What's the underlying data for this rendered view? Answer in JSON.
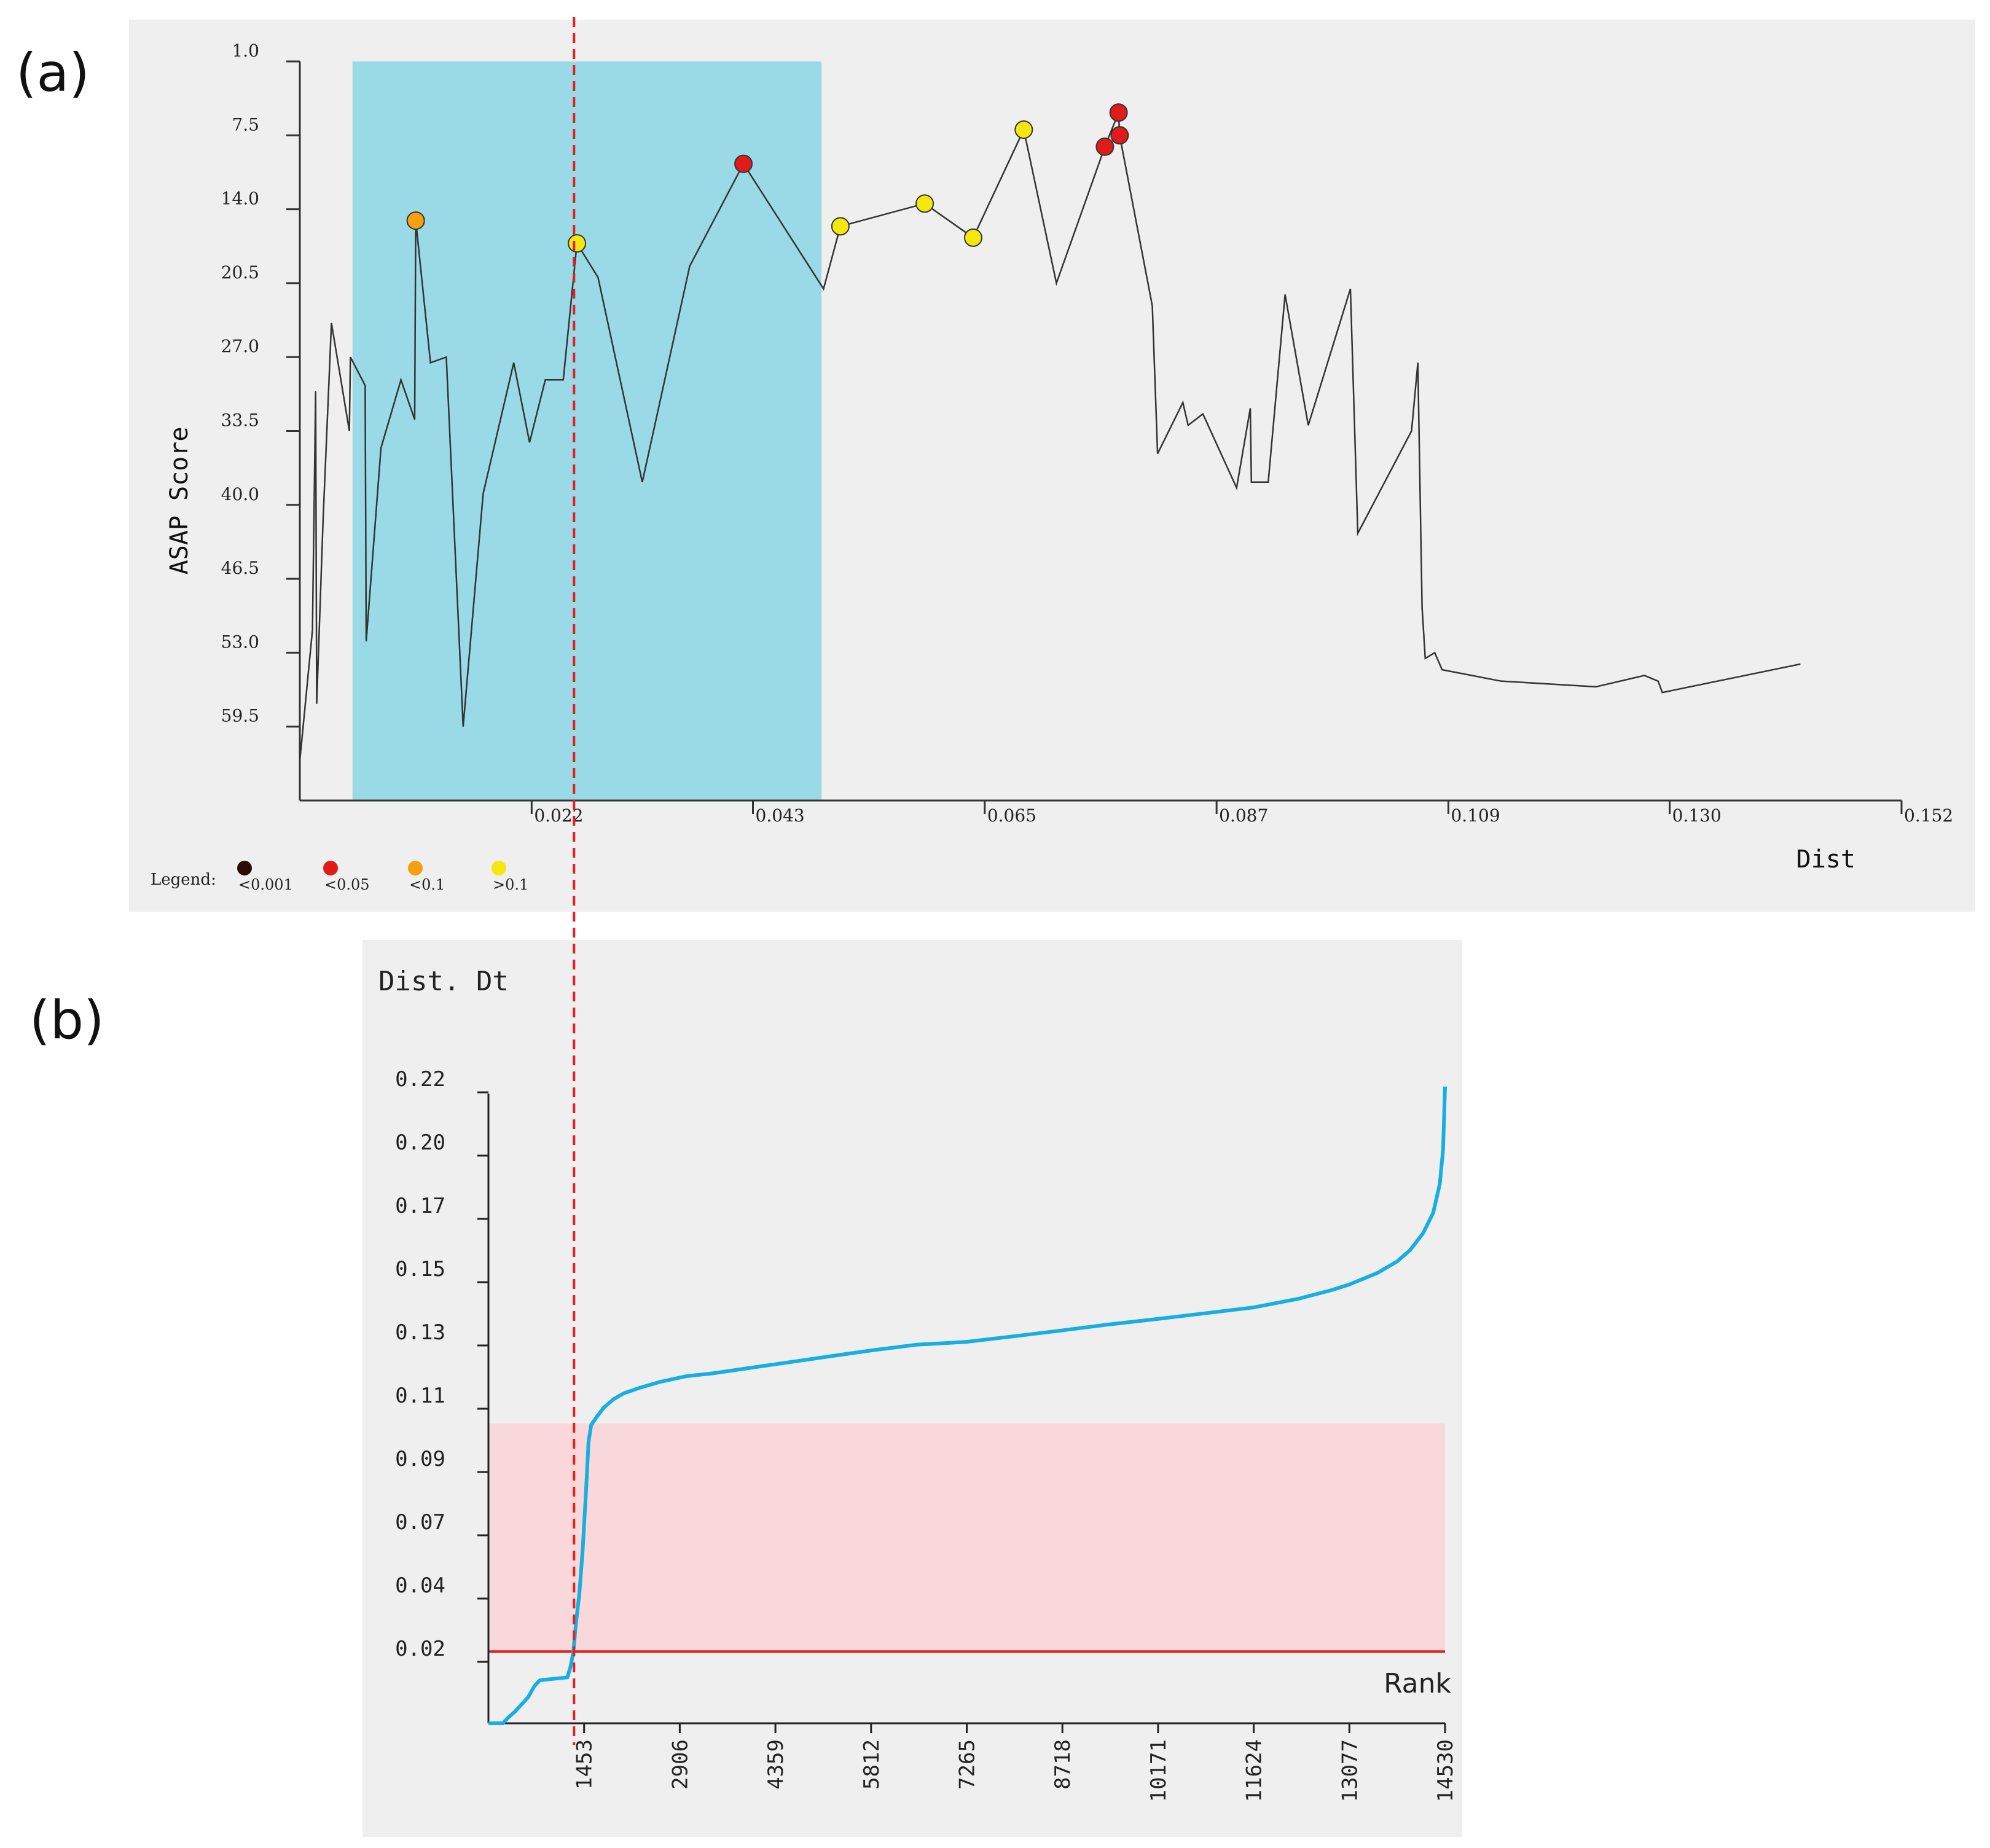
{
  "panel_labels": {
    "a": "(a)",
    "b": "(b)"
  },
  "chart_data": [
    {
      "id": "asap",
      "type": "line",
      "xlabel": "Dist",
      "ylabel": "ASAP Score",
      "y_ticks": [
        "1.0",
        "7.5",
        "14.0",
        "20.5",
        "27.0",
        "33.5",
        "40.0",
        "46.5",
        "53.0",
        "59.5"
      ],
      "x_ticks": [
        "0.022",
        "0.043",
        "0.065",
        "0.087",
        "0.109",
        "0.130",
        "0.152"
      ],
      "x_range": [
        0.0,
        0.152
      ],
      "y_range": [
        1.0,
        66.0
      ],
      "y_inverted": true,
      "highlight_x_range": [
        0.005,
        0.0495
      ],
      "cut_x": 0.0258,
      "line": [
        [
          0.0,
          62.5
        ],
        [
          0.0012,
          51.0
        ],
        [
          0.0015,
          30.0
        ],
        [
          0.0016,
          57.5
        ],
        [
          0.0022,
          41.5
        ],
        [
          0.003,
          24.0
        ],
        [
          0.0047,
          33.5
        ],
        [
          0.0048,
          27.0
        ],
        [
          0.0062,
          29.5
        ],
        [
          0.0063,
          52.0
        ],
        [
          0.0077,
          35.0
        ],
        [
          0.0096,
          29.0
        ],
        [
          0.0109,
          32.5
        ],
        [
          0.011,
          15.0
        ],
        [
          0.0124,
          27.5
        ],
        [
          0.0139,
          27.0
        ],
        [
          0.0155,
          59.5
        ],
        [
          0.0174,
          39.0
        ],
        [
          0.0203,
          27.5
        ],
        [
          0.0218,
          34.5
        ],
        [
          0.0233,
          29.0
        ],
        [
          0.025,
          29.0
        ],
        [
          0.0263,
          17.0
        ],
        [
          0.0283,
          20.0
        ],
        [
          0.0325,
          38.0
        ],
        [
          0.037,
          19.0
        ],
        [
          0.0421,
          10.0
        ],
        [
          0.0497,
          21.0
        ],
        [
          0.0513,
          15.5
        ],
        [
          0.0593,
          13.5
        ],
        [
          0.0639,
          16.5
        ],
        [
          0.0687,
          7.0
        ],
        [
          0.0718,
          20.5
        ],
        [
          0.0764,
          8.5
        ],
        [
          0.0777,
          5.5
        ],
        [
          0.0778,
          7.5
        ],
        [
          0.0809,
          22.5
        ],
        [
          0.0814,
          35.5
        ],
        [
          0.0838,
          31.0
        ],
        [
          0.0843,
          33.0
        ],
        [
          0.0857,
          32.0
        ],
        [
          0.0889,
          38.5
        ],
        [
          0.0902,
          31.5
        ],
        [
          0.0903,
          38.0
        ],
        [
          0.0919,
          38.0
        ],
        [
          0.0935,
          21.5
        ],
        [
          0.0957,
          33.0
        ],
        [
          0.0997,
          21.0
        ],
        [
          0.1004,
          42.5
        ],
        [
          0.1055,
          33.5
        ],
        [
          0.1061,
          27.5
        ],
        [
          0.1065,
          49.0
        ],
        [
          0.1068,
          53.5
        ],
        [
          0.1077,
          53.0
        ],
        [
          0.1084,
          54.5
        ],
        [
          0.114,
          55.5
        ],
        [
          0.123,
          56.0
        ],
        [
          0.1276,
          55.0
        ],
        [
          0.1289,
          55.5
        ],
        [
          0.1293,
          56.5
        ],
        [
          0.1424,
          54.0
        ]
      ],
      "markers": [
        {
          "x": 0.011,
          "y": 15.0,
          "color": "#f5a10f"
        },
        {
          "x": 0.0263,
          "y": 17.0,
          "color": "#f5e610"
        },
        {
          "x": 0.0421,
          "y": 10.0,
          "color": "#e11a1a"
        },
        {
          "x": 0.0513,
          "y": 15.5,
          "color": "#f5e610"
        },
        {
          "x": 0.0593,
          "y": 13.5,
          "color": "#f5e610"
        },
        {
          "x": 0.0639,
          "y": 16.5,
          "color": "#f5e610"
        },
        {
          "x": 0.0687,
          "y": 7.0,
          "color": "#f5e610"
        },
        {
          "x": 0.0764,
          "y": 8.5,
          "color": "#e11a1a"
        },
        {
          "x": 0.0777,
          "y": 5.5,
          "color": "#e11a1a"
        },
        {
          "x": 0.0778,
          "y": 7.5,
          "color": "#e11a1a"
        }
      ],
      "legend": {
        "title": "Legend:",
        "items": [
          {
            "label": "<0.001",
            "color": "#2b0a0a"
          },
          {
            "label": "<0.05",
            "color": "#e11a1a"
          },
          {
            "label": "<0.1",
            "color": "#f5a10f"
          },
          {
            "label": ">0.1",
            "color": "#f5e610"
          }
        ]
      },
      "colors": {
        "panel_bg": "#efefef",
        "highlight": "#9ad9e6",
        "line": "#333333",
        "cut": "#e02020"
      }
    },
    {
      "id": "rank",
      "type": "line",
      "ylabel": "Dist. Dt",
      "xlabel": "Rank",
      "y_ticks": [
        "0.22",
        "0.20",
        "0.17",
        "0.15",
        "0.13",
        "0.11",
        "0.09",
        "0.07",
        "0.04",
        "0.02"
      ],
      "x_ticks": [
        "1453",
        "2906",
        "4359",
        "5812",
        "7265",
        "8718",
        "10171",
        "11624",
        "13077",
        "14530"
      ],
      "x_range": [
        0,
        14530
      ],
      "y_range": [
        0.0,
        0.22
      ],
      "threshold_y": 0.025,
      "band_y_range": [
        0.025,
        0.1045
      ],
      "cut_x": 1300,
      "line": [
        [
          0,
          0.0
        ],
        [
          220,
          0.0
        ],
        [
          300,
          0.002
        ],
        [
          400,
          0.004
        ],
        [
          600,
          0.009
        ],
        [
          700,
          0.013
        ],
        [
          780,
          0.015
        ],
        [
          1200,
          0.016
        ],
        [
          1250,
          0.02
        ],
        [
          1290,
          0.025
        ],
        [
          1330,
          0.035
        ],
        [
          1380,
          0.045
        ],
        [
          1430,
          0.06
        ],
        [
          1480,
          0.08
        ],
        [
          1520,
          0.098
        ],
        [
          1560,
          0.104
        ],
        [
          1650,
          0.107
        ],
        [
          1750,
          0.11
        ],
        [
          1900,
          0.113
        ],
        [
          2050,
          0.115
        ],
        [
          2300,
          0.117
        ],
        [
          2600,
          0.119
        ],
        [
          3000,
          0.121
        ],
        [
          3400,
          0.122
        ],
        [
          4000,
          0.124
        ],
        [
          4600,
          0.126
        ],
        [
          5200,
          0.128
        ],
        [
          5812,
          0.13
        ],
        [
          6500,
          0.132
        ],
        [
          7265,
          0.133
        ],
        [
          8000,
          0.135
        ],
        [
          8718,
          0.137
        ],
        [
          9400,
          0.139
        ],
        [
          10171,
          0.141
        ],
        [
          10900,
          0.143
        ],
        [
          11624,
          0.145
        ],
        [
          12300,
          0.148
        ],
        [
          12800,
          0.151
        ],
        [
          13077,
          0.153
        ],
        [
          13500,
          0.157
        ],
        [
          13800,
          0.161
        ],
        [
          14000,
          0.165
        ],
        [
          14200,
          0.171
        ],
        [
          14350,
          0.178
        ],
        [
          14450,
          0.188
        ],
        [
          14500,
          0.2
        ],
        [
          14530,
          0.222
        ]
      ],
      "colors": {
        "panel_bg": "#efefef",
        "band": "#f8d8da",
        "line": "#19aee0",
        "threshold": "#e02020",
        "cut": "#e02020"
      }
    }
  ]
}
